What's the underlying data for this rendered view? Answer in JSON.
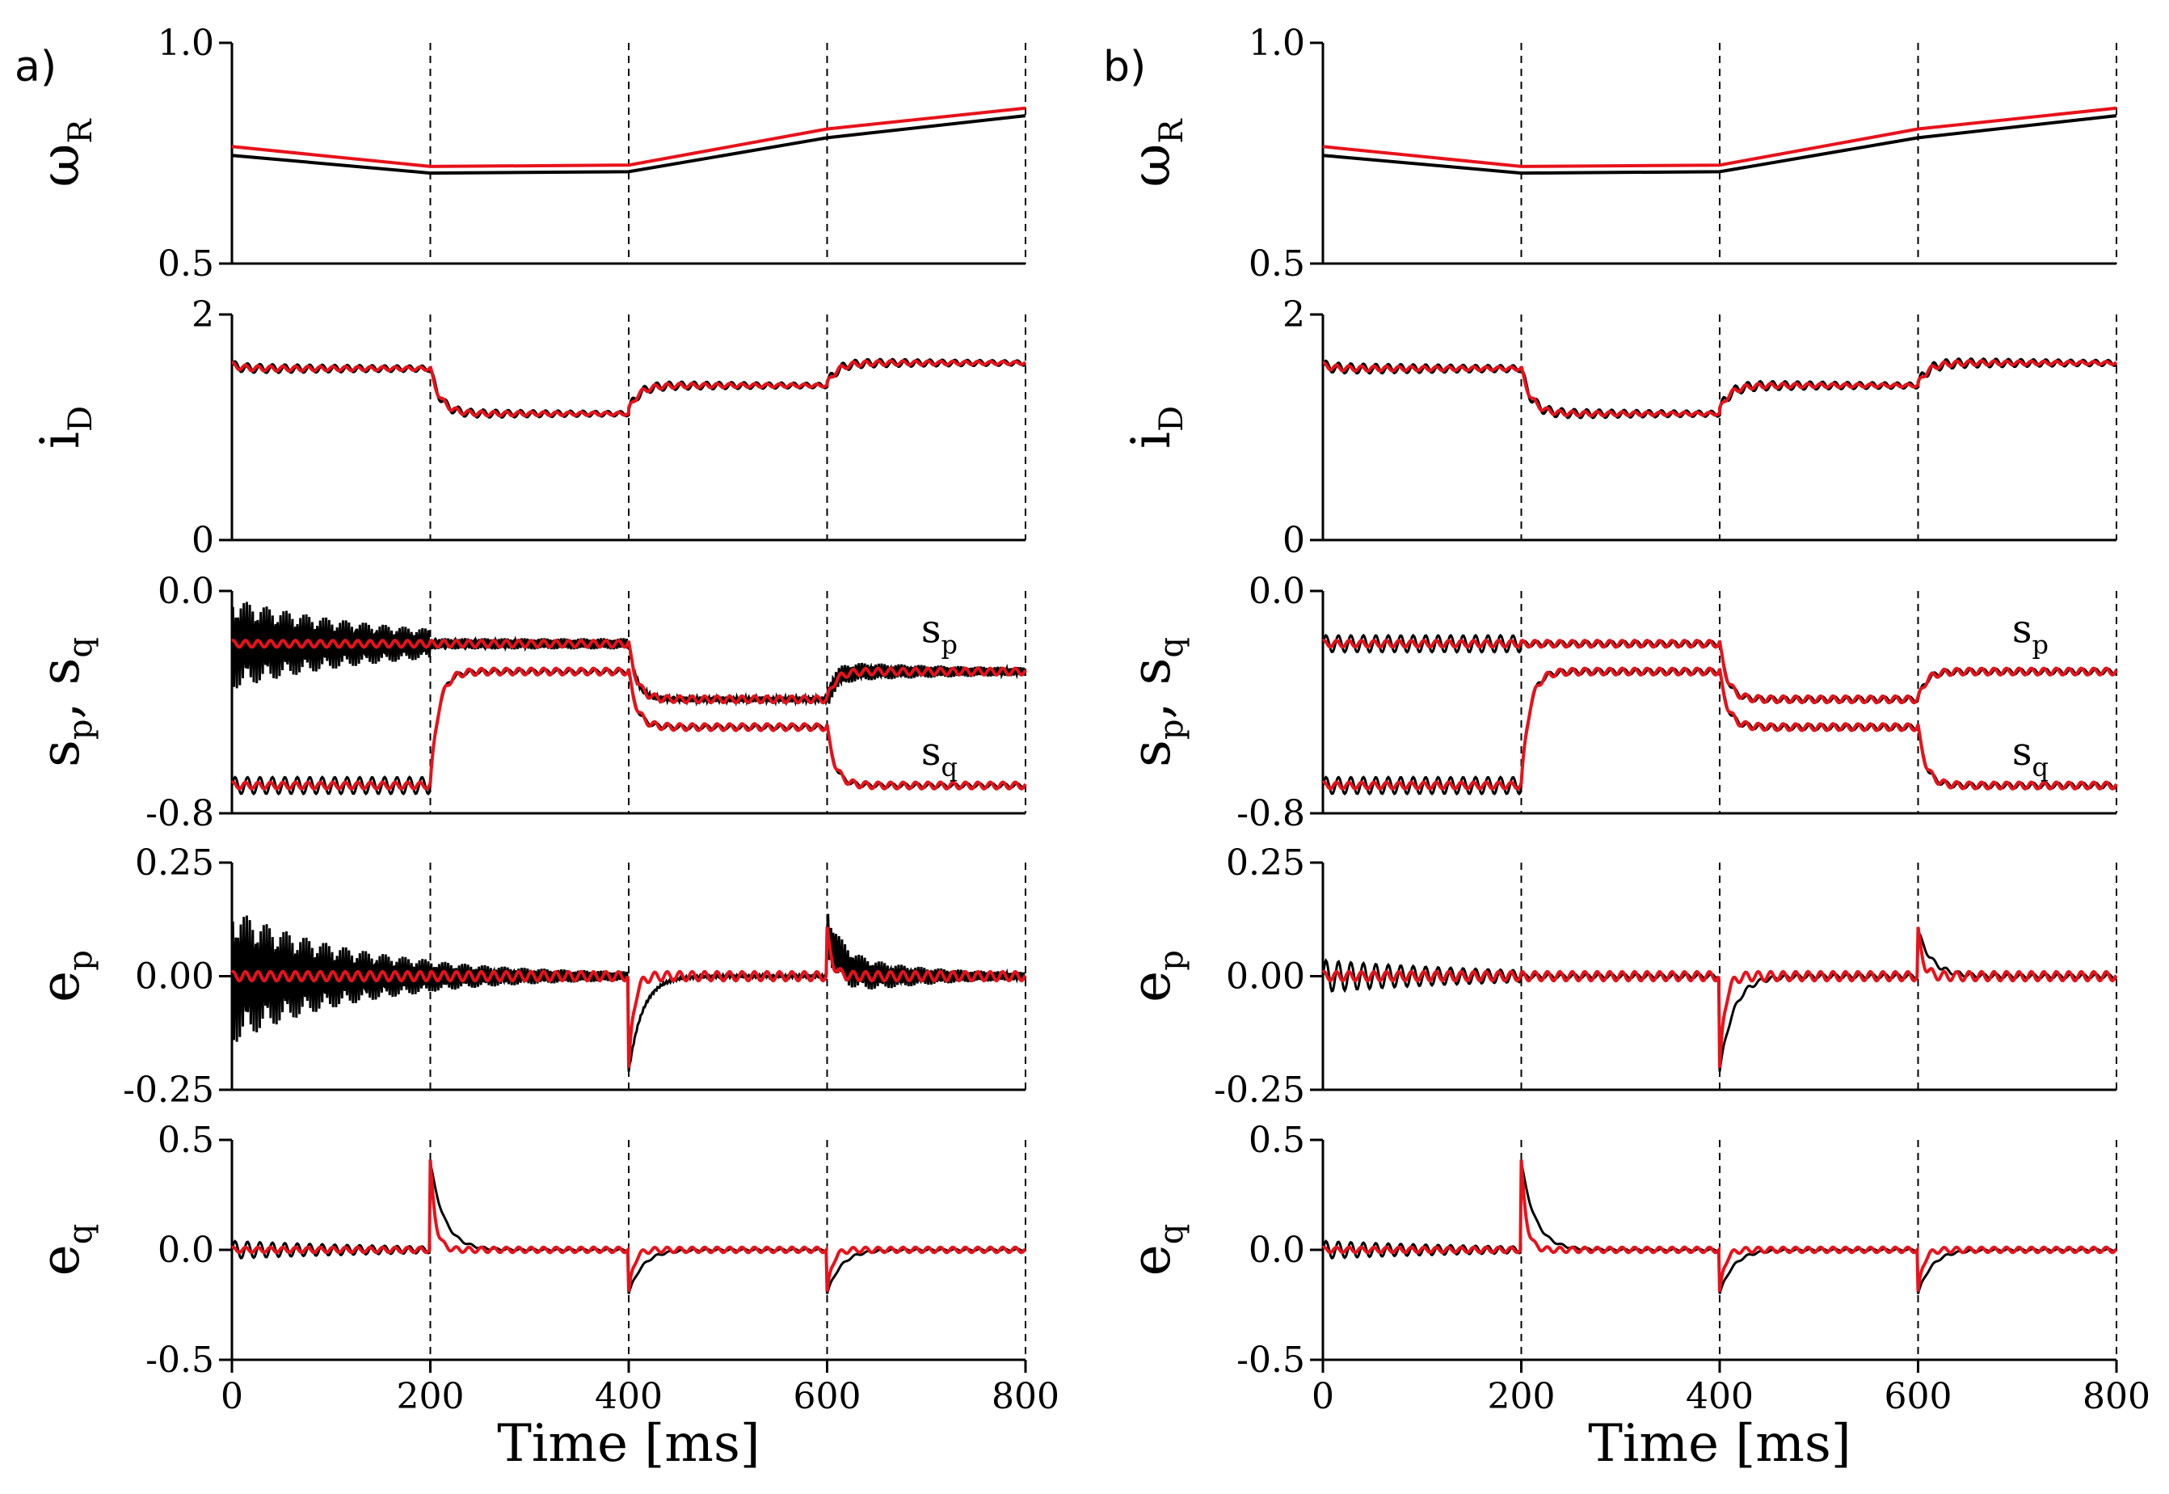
{
  "figure": {
    "xlabel": "Time [ms]",
    "panels": [
      {
        "label": "a)",
        "variant": "a"
      },
      {
        "label": "b)",
        "variant": "b"
      }
    ],
    "legend": {
      "colors": {
        "black_series": "#000000",
        "red_series": "#e8121a"
      }
    }
  },
  "chart_data": [
    {
      "type": "line",
      "panel": "a",
      "x_range": [
        0,
        800
      ],
      "x_ticks": [
        "0",
        "200",
        "400",
        "600",
        "800"
      ],
      "vlines": [
        200,
        400,
        600,
        800
      ],
      "subplots": [
        {
          "ylabel": "ω",
          "ylabel_sub": "R",
          "ylim": [
            0.5,
            1.0
          ],
          "yticks": [
            "0.5",
            "1.0"
          ],
          "ytick_values": [
            0.5,
            1.0
          ],
          "series": [
            {
              "name": "black",
              "points": [
                [
                  0,
                  0.745
                ],
                [
                  200,
                  0.705
                ],
                [
                  400,
                  0.708
                ],
                [
                  600,
                  0.785
                ],
                [
                  800,
                  0.835
                ]
              ]
            },
            {
              "name": "red",
              "points": [
                [
                  0,
                  0.765
                ],
                [
                  200,
                  0.72
                ],
                [
                  400,
                  0.723
                ],
                [
                  600,
                  0.805
                ],
                [
                  800,
                  0.852
                ]
              ]
            }
          ]
        },
        {
          "ylabel": "i",
          "ylabel_sub": "D",
          "ylim": [
            0,
            2
          ],
          "yticks": [
            "0",
            "2"
          ],
          "ytick_values": [
            0,
            2
          ],
          "segments": [
            {
              "from": 0,
              "to": 200,
              "start": 1.55,
              "level": 1.52
            },
            {
              "from": 200,
              "to": 400,
              "start": 1.52,
              "level": 1.12
            },
            {
              "from": 400,
              "to": 600,
              "start": 1.15,
              "level": 1.37
            },
            {
              "from": 600,
              "to": 800,
              "start": 1.38,
              "level": 1.57
            }
          ]
        },
        {
          "ylabel": "s",
          "ylabel_sub": "p",
          "ylabel2": ", s",
          "ylabel2_sub": "q",
          "ylim": [
            -0.8,
            0.0
          ],
          "yticks": [
            "-0.8",
            "0.0"
          ],
          "ytick_values": [
            -0.8,
            0.0
          ],
          "annotations": [
            {
              "text": "s",
              "sub": "p",
              "x": 760,
              "y": -0.15
            },
            {
              "text": "s",
              "sub": "q",
              "x": 760,
              "y": -0.59
            }
          ],
          "series": [
            {
              "name": "s_p",
              "levels": [
                -0.19,
                -0.19,
                -0.39,
                -0.29
              ]
            },
            {
              "name": "s_q",
              "levels": [
                -0.7,
                -0.29,
                -0.49,
                -0.7
              ]
            }
          ]
        },
        {
          "ylabel": "e",
          "ylabel_sub": "p",
          "ylim": [
            -0.25,
            0.25
          ],
          "yticks": [
            "-0.25",
            "0.00",
            "0.25"
          ],
          "ytick_values": [
            -0.25,
            0.0,
            0.25
          ],
          "spikes": [
            {
              "at": 200,
              "peak": 0.0
            },
            {
              "at": 400,
              "peak": -0.21
            },
            {
              "at": 600,
              "peak": 0.1
            }
          ]
        },
        {
          "ylabel": "e",
          "ylabel_sub": "q",
          "ylim": [
            -0.5,
            0.5
          ],
          "yticks": [
            "-0.5",
            "0.0",
            "0.5"
          ],
          "ytick_values": [
            -0.5,
            0.0,
            0.5
          ],
          "spikes": [
            {
              "at": 200,
              "peak": 0.4
            },
            {
              "at": 400,
              "peak": -0.2
            },
            {
              "at": 600,
              "peak": -0.2
            }
          ]
        }
      ]
    },
    {
      "type": "line",
      "panel": "b",
      "x_range": [
        0,
        800
      ],
      "x_ticks": [
        "0",
        "200",
        "400",
        "600",
        "800"
      ],
      "vlines": [
        200,
        400,
        600,
        800
      ],
      "subplots": [
        {
          "ylabel": "ω",
          "ylabel_sub": "R",
          "ylim": [
            0.5,
            1.0
          ],
          "yticks": [
            "0.5",
            "1.0"
          ],
          "ytick_values": [
            0.5,
            1.0
          ],
          "series": [
            {
              "name": "black",
              "points": [
                [
                  0,
                  0.745
                ],
                [
                  200,
                  0.705
                ],
                [
                  400,
                  0.708
                ],
                [
                  600,
                  0.785
                ],
                [
                  800,
                  0.835
                ]
              ]
            },
            {
              "name": "red",
              "points": [
                [
                  0,
                  0.765
                ],
                [
                  200,
                  0.72
                ],
                [
                  400,
                  0.723
                ],
                [
                  600,
                  0.805
                ],
                [
                  800,
                  0.852
                ]
              ]
            }
          ]
        },
        {
          "ylabel": "i",
          "ylabel_sub": "D",
          "ylim": [
            0,
            2
          ],
          "yticks": [
            "0",
            "2"
          ],
          "ytick_values": [
            0,
            2
          ],
          "segments": [
            {
              "from": 0,
              "to": 200,
              "start": 1.55,
              "level": 1.52
            },
            {
              "from": 200,
              "to": 400,
              "start": 1.52,
              "level": 1.12
            },
            {
              "from": 400,
              "to": 600,
              "start": 1.15,
              "level": 1.37
            },
            {
              "from": 600,
              "to": 800,
              "start": 1.38,
              "level": 1.57
            }
          ]
        },
        {
          "ylabel": "s",
          "ylabel_sub": "p",
          "ylabel2": ", s",
          "ylabel2_sub": "q",
          "ylim": [
            -0.8,
            0.0
          ],
          "yticks": [
            "-0.8",
            "0.0"
          ],
          "ytick_values": [
            -0.8,
            0.0
          ],
          "annotations": [
            {
              "text": "s",
              "sub": "p",
              "x": 760,
              "y": -0.15
            },
            {
              "text": "s",
              "sub": "q",
              "x": 760,
              "y": -0.59
            }
          ],
          "series": [
            {
              "name": "s_p",
              "levels": [
                -0.19,
                -0.19,
                -0.39,
                -0.29
              ]
            },
            {
              "name": "s_q",
              "levels": [
                -0.7,
                -0.29,
                -0.49,
                -0.7
              ]
            }
          ]
        },
        {
          "ylabel": "e",
          "ylabel_sub": "p",
          "ylim": [
            -0.25,
            0.25
          ],
          "yticks": [
            "-0.25",
            "0.00",
            "0.25"
          ],
          "ytick_values": [
            -0.25,
            0.0,
            0.25
          ],
          "spikes": [
            {
              "at": 200,
              "peak": 0.0
            },
            {
              "at": 400,
              "peak": -0.21
            },
            {
              "at": 600,
              "peak": 0.1
            }
          ]
        },
        {
          "ylabel": "e",
          "ylabel_sub": "q",
          "ylim": [
            -0.5,
            0.5
          ],
          "yticks": [
            "-0.5",
            "0.0",
            "0.5"
          ],
          "ytick_values": [
            -0.5,
            0.0,
            0.5
          ],
          "spikes": [
            {
              "at": 200,
              "peak": 0.4
            },
            {
              "at": 400,
              "peak": -0.2
            },
            {
              "at": 600,
              "peak": -0.2
            }
          ]
        }
      ]
    }
  ]
}
